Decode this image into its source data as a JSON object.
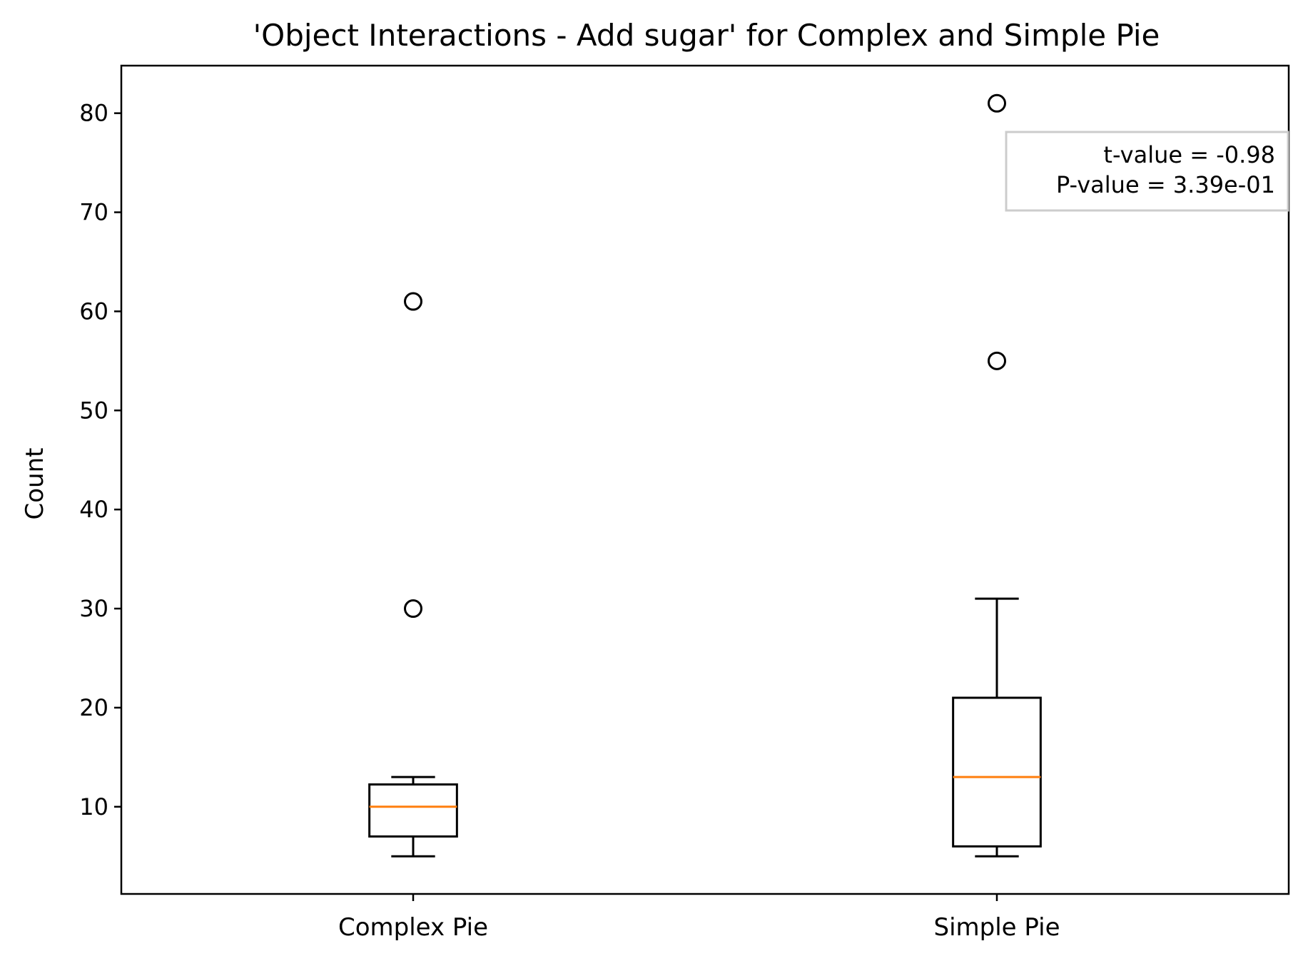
{
  "chart_data": {
    "type": "box",
    "title": "'Object Interactions - Add sugar' for Complex and Simple Pie",
    "xlabel": "",
    "ylabel": "Count",
    "ylim": [
      1.2,
      84.8
    ],
    "yticks": [
      10,
      20,
      30,
      40,
      50,
      60,
      70,
      80
    ],
    "grid": false,
    "categories": [
      "Complex Pie",
      "Simple Pie"
    ],
    "boxes": [
      {
        "category": "Complex Pie",
        "whisker_low": 5,
        "q1": 7,
        "median": 10,
        "q3": 12.25,
        "whisker_high": 13,
        "outliers": [
          30,
          61
        ]
      },
      {
        "category": "Simple Pie",
        "whisker_low": 5,
        "q1": 6,
        "median": 13,
        "q3": 21,
        "whisker_high": 31,
        "outliers": [
          55,
          81
        ]
      }
    ],
    "annotation": {
      "lines": [
        "t-value = -0.98",
        "P-value = 3.39e-01"
      ],
      "placement": "top-right"
    },
    "colors": {
      "box": "#000000",
      "median": "#ff7f0e",
      "annotation_border": "#cccccc"
    }
  }
}
